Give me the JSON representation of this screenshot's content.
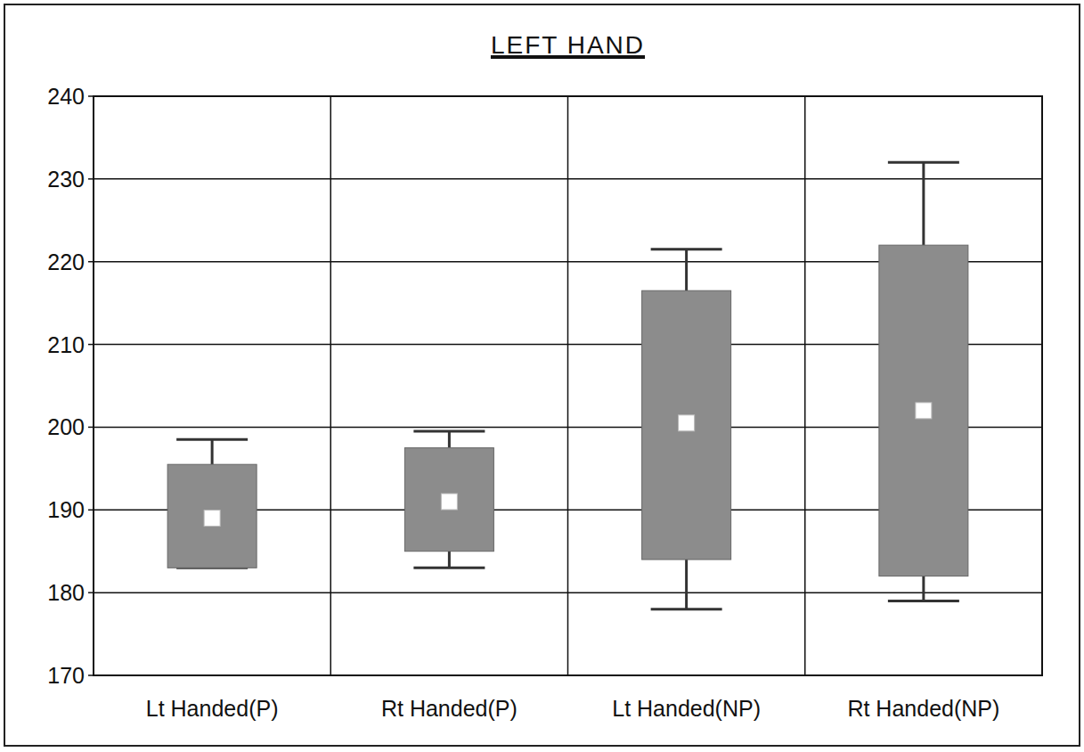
{
  "chart_data": {
    "type": "box",
    "title": "LEFT HAND",
    "categories": [
      "Lt Handed(P)",
      "Rt Handed(P)",
      "Lt Handed(NP)",
      "Rt Handed(NP)"
    ],
    "min": [
      183,
      183,
      178,
      179
    ],
    "q1": [
      183,
      185,
      184,
      182
    ],
    "median": [
      189,
      191,
      200.5,
      202
    ],
    "q3": [
      195.5,
      197.5,
      216.5,
      222
    ],
    "max": [
      198.5,
      199.5,
      221.5,
      232
    ],
    "color": "#8c8c8c",
    "ylim": [
      170,
      240
    ],
    "yticks": [
      170,
      180,
      190,
      200,
      210,
      220,
      230,
      240
    ],
    "grid": true
  }
}
